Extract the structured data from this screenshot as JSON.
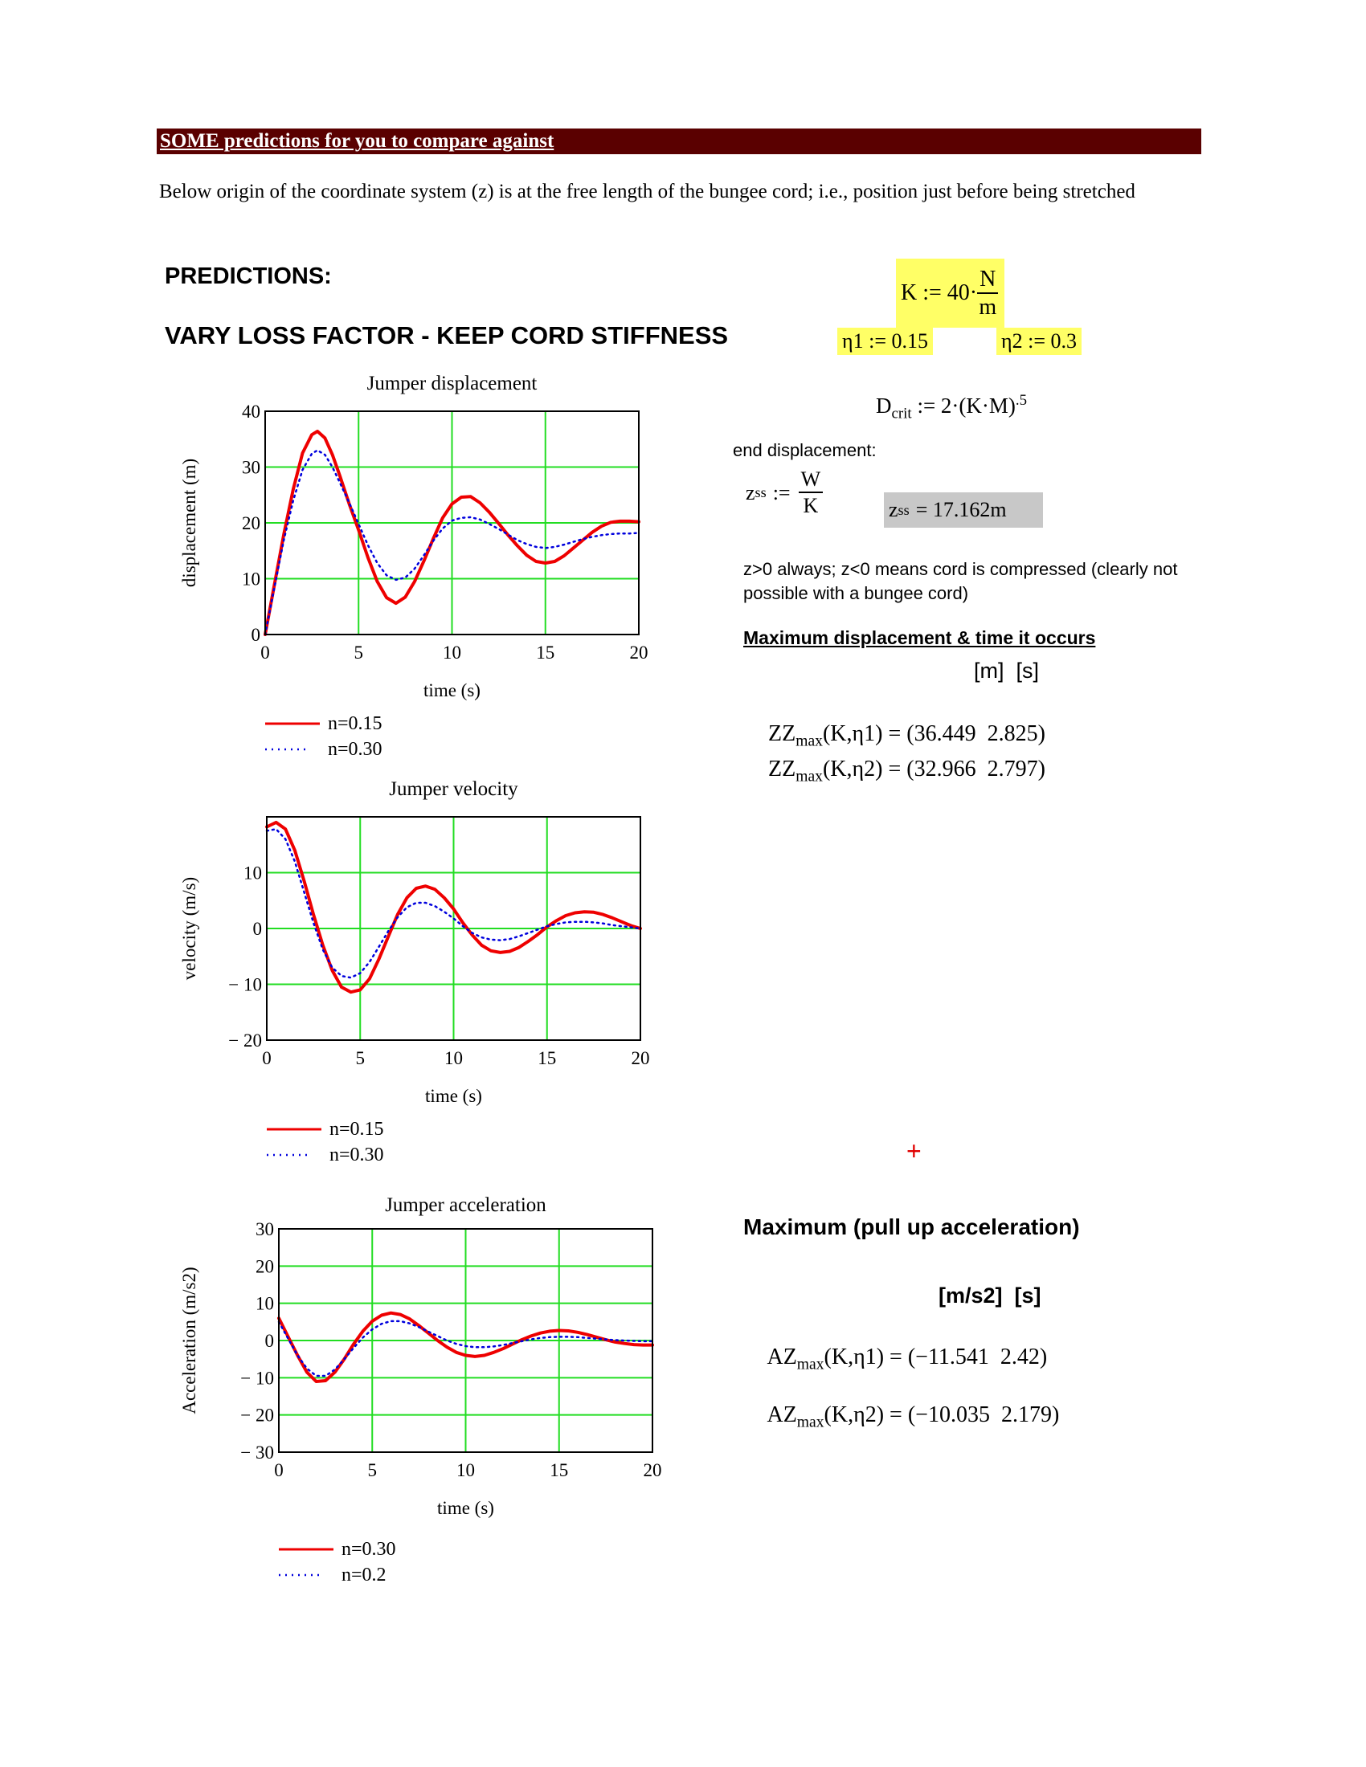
{
  "banner": {
    "title": "SOME predictions for you to compare against"
  },
  "intro": "Below origin of the coordinate system (z) is at the free length of the bungee cord; i.e., position just before being stretched",
  "headings": {
    "predictions": "PREDICTIONS:",
    "vary": "VARY LOSS FACTOR - KEEP CORD STIFFNESS"
  },
  "params": {
    "K_lhs": "K := 40·",
    "K_num": "N",
    "K_den": "m",
    "eta1": "η1 := 0.15",
    "eta2": "η2 := 0.3",
    "dcrit_lhs": "D",
    "dcrit_sub": "crit",
    "dcrit_rhs": ":= 2·(K·M)",
    "dcrit_exp": ".5"
  },
  "end_disp": {
    "label": "end displacement:",
    "zss_lhs": "z",
    "zss_sub": "ss",
    "zss_assign": ":=",
    "frac_num": "W",
    "frac_den": "K",
    "result_sub": "ss",
    "result": "= 17.162m"
  },
  "note_compressed": "z>0 always; z<0 means cord is compressed (clearly not possible with a bungee cord)",
  "maxdisp": {
    "heading": "Maximum displacement & time it occurs",
    "units": "[m]  [s]",
    "row1_lhs": "ZZ",
    "row1_sub": "max",
    "row1_args": "(K,η1)",
    "row1_val": "= (36.449  2.825)",
    "row2_lhs": "ZZ",
    "row2_sub": "max",
    "row2_args": "(K,η2)",
    "row2_val": "= (32.966  2.797)"
  },
  "maxacc": {
    "heading": "Maximum (pull up acceleration)",
    "units": "[m/s2]  [s]",
    "row1_lhs": "AZ",
    "row1_sub": "max",
    "row1_args": "(K,η1)",
    "row1_val": "= (−11.541  2.42)",
    "row2_lhs": "AZ",
    "row2_sub": "max",
    "row2_args": "(K,η2)",
    "row2_val": "= (−10.035  2.179)"
  },
  "plus_mark": "+",
  "colors": {
    "banner": "#5a0000",
    "grid": "#22dd22",
    "red": "#ee0000",
    "blue": "#0000dd",
    "highlight": "#ffff66"
  },
  "chart_data": [
    {
      "type": "line",
      "title": "Jumper displacement",
      "xlabel": "time (s)",
      "ylabel": "displacement (m)",
      "xlim": [
        0,
        20
      ],
      "ylim": [
        0,
        40
      ],
      "xticks": [
        "0",
        "5",
        "10",
        "15",
        "20"
      ],
      "yticks": [
        "0",
        "10",
        "20",
        "30",
        "40"
      ],
      "grid": true,
      "legend": "below",
      "series": [
        {
          "name": "n=0.15",
          "style": "solid",
          "color": "#ee0000",
          "x": [
            0,
            0.5,
            1,
            1.5,
            2,
            2.5,
            2.8,
            3.2,
            3.6,
            4,
            4.5,
            5,
            5.5,
            6,
            6.5,
            7,
            7.5,
            8,
            8.5,
            9,
            9.5,
            10,
            10.5,
            11,
            11.5,
            12,
            12.5,
            13,
            13.5,
            14,
            14.5,
            15,
            15.5,
            16,
            16.5,
            17,
            17.5,
            18,
            18.5,
            19,
            19.5,
            20
          ],
          "y": [
            0,
            9,
            18,
            26,
            32.5,
            35.8,
            36.4,
            35.2,
            32.2,
            28.4,
            23.4,
            18.7,
            13.8,
            9.5,
            6.6,
            5.6,
            6.7,
            9.5,
            13.2,
            17.2,
            20.9,
            23.4,
            24.6,
            24.7,
            23.6,
            21.9,
            19.9,
            17.8,
            15.9,
            14.2,
            13.1,
            12.8,
            13.1,
            14.1,
            15.5,
            16.9,
            18.3,
            19.4,
            20.1,
            20.3,
            20.3,
            20.2
          ]
        },
        {
          "name": "n=0.30",
          "style": "dotted",
          "color": "#0000dd",
          "x": [
            0,
            0.5,
            1,
            1.5,
            2,
            2.5,
            2.8,
            3.2,
            3.6,
            4,
            4.5,
            5,
            5.5,
            6,
            6.5,
            7,
            7.5,
            8,
            8.5,
            9,
            9.5,
            10,
            10.5,
            11,
            11.5,
            12,
            12.5,
            13,
            13.5,
            14,
            14.5,
            15,
            15.5,
            16,
            16.5,
            17,
            17.5,
            18,
            18.5,
            19,
            19.5,
            20
          ],
          "y": [
            0,
            8.5,
            17,
            24,
            29.5,
            32.4,
            33,
            32.2,
            30,
            27.2,
            23.6,
            19.8,
            16,
            12.8,
            10.6,
            9.8,
            10.2,
            11.8,
            14.2,
            16.8,
            19,
            20.4,
            20.9,
            21,
            20.6,
            19.8,
            18.9,
            17.9,
            16.9,
            16.2,
            15.7,
            15.5,
            15.7,
            16.1,
            16.6,
            17.1,
            17.5,
            17.8,
            18,
            18.1,
            18.1,
            18.2
          ]
        }
      ]
    },
    {
      "type": "line",
      "title": "Jumper velocity",
      "xlabel": "time (s)",
      "ylabel": "velocity (m/s)",
      "xlim": [
        0,
        20
      ],
      "ylim": [
        -20,
        20
      ],
      "xticks": [
        "0",
        "5",
        "10",
        "15",
        "20"
      ],
      "yticks": [
        "− 20",
        "− 10",
        "0",
        "10"
      ],
      "grid": true,
      "legend": "below",
      "series": [
        {
          "name": "n=0.15",
          "style": "solid",
          "color": "#ee0000",
          "x": [
            0,
            0.5,
            1,
            1.5,
            2,
            2.5,
            3,
            3.5,
            4,
            4.5,
            5,
            5.5,
            6,
            6.5,
            7,
            7.5,
            8,
            8.5,
            9,
            9.5,
            10,
            10.5,
            11,
            11.5,
            12,
            12.5,
            13,
            13.5,
            14,
            14.5,
            15,
            15.5,
            16,
            16.5,
            17,
            17.5,
            18,
            18.5,
            19,
            19.5,
            20
          ],
          "y": [
            18.2,
            19,
            17.8,
            14,
            8.5,
            2.5,
            -3,
            -7.5,
            -10.5,
            -11.4,
            -11,
            -9,
            -5.5,
            -1.5,
            2.5,
            5.5,
            7.2,
            7.6,
            7,
            5.5,
            3.5,
            1,
            -1.2,
            -3,
            -4,
            -4.3,
            -4.1,
            -3.4,
            -2.3,
            -1.1,
            0.3,
            1.4,
            2.3,
            2.8,
            3,
            2.9,
            2.5,
            1.9,
            1.2,
            0.5,
            0
          ]
        },
        {
          "name": "n=0.30",
          "style": "dotted",
          "color": "#0000dd",
          "x": [
            0,
            0.5,
            1,
            1.5,
            2,
            2.5,
            3,
            3.5,
            4,
            4.5,
            5,
            5.5,
            6,
            6.5,
            7,
            7.5,
            8,
            8.5,
            9,
            9.5,
            10,
            10.5,
            11,
            11.5,
            12,
            12.5,
            13,
            13.5,
            14,
            14.5,
            15,
            15.5,
            16,
            16.5,
            17,
            17.5,
            18,
            18.5,
            19,
            19.5,
            20
          ],
          "y": [
            17.5,
            17.8,
            16,
            12,
            6.5,
            1,
            -3.8,
            -7,
            -8.5,
            -8.8,
            -8,
            -6,
            -3.3,
            -0.5,
            2,
            3.8,
            4.6,
            4.6,
            4,
            3,
            1.8,
            0.4,
            -0.8,
            -1.6,
            -2,
            -2.1,
            -1.9,
            -1.4,
            -0.8,
            -0.2,
            0.4,
            0.8,
            1.1,
            1.2,
            1.2,
            1.1,
            0.9,
            0.6,
            0.4,
            0.2,
            0
          ]
        }
      ]
    },
    {
      "type": "line",
      "title": "Jumper acceleration",
      "xlabel": "time (s)",
      "ylabel": "Acceleration (m/s2)",
      "xlim": [
        0,
        20
      ],
      "ylim": [
        -30,
        30
      ],
      "xticks": [
        "0",
        "5",
        "10",
        "15",
        "20"
      ],
      "yticks": [
        "− 30",
        "− 20",
        "− 10",
        "0",
        "10",
        "20",
        "30"
      ],
      "grid": true,
      "legend": "below",
      "series": [
        {
          "name": "n=0.30",
          "style": "solid",
          "color": "#ee0000",
          "x": [
            0,
            0.5,
            1,
            1.5,
            2,
            2.5,
            3,
            3.5,
            4,
            4.5,
            5,
            5.5,
            6,
            6.5,
            7,
            7.5,
            8,
            8.5,
            9,
            9.5,
            10,
            10.5,
            11,
            11.5,
            12,
            12.5,
            13,
            13.5,
            14,
            14.5,
            15,
            15.5,
            16,
            16.5,
            17,
            17.5,
            18,
            18.5,
            19,
            19.5,
            20
          ],
          "y": [
            6,
            1,
            -4,
            -8.5,
            -11,
            -10.8,
            -8.5,
            -5,
            -1,
            2.5,
            5.2,
            6.8,
            7.4,
            7,
            5.8,
            4,
            2,
            0,
            -1.8,
            -3.2,
            -4,
            -4.3,
            -4,
            -3.2,
            -2.2,
            -1,
            0.2,
            1.2,
            2,
            2.5,
            2.7,
            2.6,
            2.2,
            1.6,
            0.9,
            0.2,
            -0.4,
            -0.8,
            -1.1,
            -1.2,
            -1.2
          ]
        },
        {
          "name": "n=0.2",
          "style": "dotted",
          "color": "#0000dd",
          "x": [
            0,
            0.5,
            1,
            1.5,
            2,
            2.5,
            3,
            3.5,
            4,
            4.5,
            5,
            5.5,
            6,
            6.5,
            7,
            7.5,
            8,
            8.5,
            9,
            9.5,
            10,
            10.5,
            11,
            11.5,
            12,
            12.5,
            13,
            13.5,
            14,
            14.5,
            15,
            15.5,
            16,
            16.5,
            17,
            17.5,
            18,
            18.5,
            19,
            19.5,
            20
          ],
          "y": [
            5,
            0.5,
            -4,
            -7.5,
            -9.5,
            -9.5,
            -7.8,
            -5,
            -2,
            0.8,
            3,
            4.5,
            5.2,
            5.2,
            4.6,
            3.6,
            2.4,
            1.2,
            0,
            -0.9,
            -1.5,
            -1.8,
            -1.8,
            -1.6,
            -1.2,
            -0.7,
            -0.2,
            0.3,
            0.7,
            0.9,
            1,
            1,
            0.9,
            0.7,
            0.5,
            0.3,
            0.1,
            0,
            -0.1,
            -0.2,
            -0.2
          ]
        }
      ]
    }
  ]
}
